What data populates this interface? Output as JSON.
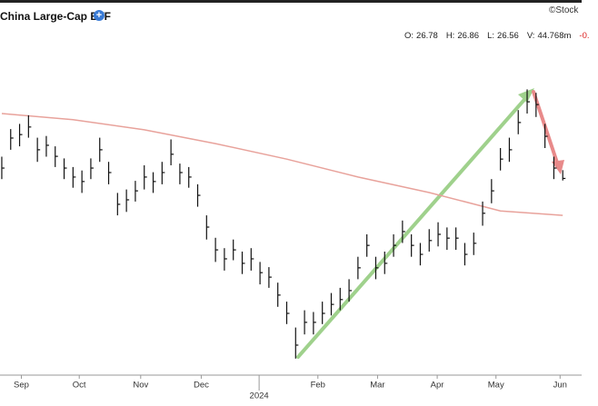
{
  "header": {
    "title": "China Large-Cap ETF",
    "watermark": "©Stock",
    "quote": [
      {
        "label": "O:",
        "value": 26.78
      },
      {
        "label": "H:",
        "value": 26.86
      },
      {
        "label": "L:",
        "value": 26.56
      },
      {
        "label": "V:",
        "value": "44.768m"
      }
    ],
    "change": "-0."
  },
  "chart_data": {
    "type": "ohlc",
    "color": "#111111",
    "high": [
      27.25,
      28.05,
      28.2,
      28.45,
      27.8,
      27.85,
      27.55,
      27.2,
      26.95,
      26.85,
      27.2,
      27.8,
      27.1,
      26.2,
      26.3,
      26.55,
      27.0,
      26.8,
      27.1,
      27.75,
      27.05,
      26.95,
      26.45,
      25.55,
      24.9,
      24.6,
      24.85,
      24.5,
      24.6,
      24.2,
      24.05,
      23.6,
      23.05,
      22.3,
      22.8,
      22.75,
      23.05,
      23.3,
      23.45,
      23.7,
      24.35,
      25.0,
      24.35,
      24.5,
      25.0,
      25.4,
      25.0,
      24.75,
      25.15,
      25.35,
      25.2,
      25.2,
      24.75,
      25.05,
      25.95,
      26.6,
      27.5,
      27.8,
      28.6,
      29.2,
      29.1,
      28.2,
      27.25,
      26.86
    ],
    "low": [
      26.6,
      27.45,
      27.55,
      27.8,
      27.1,
      27.25,
      26.95,
      26.6,
      26.35,
      26.2,
      26.6,
      27.1,
      26.45,
      25.55,
      25.65,
      25.95,
      26.3,
      26.2,
      26.45,
      27.0,
      26.45,
      26.35,
      25.8,
      24.85,
      24.2,
      23.95,
      24.25,
      23.85,
      23.95,
      23.55,
      23.45,
      22.9,
      22.4,
      21.4,
      22.1,
      22.1,
      22.4,
      22.65,
      22.8,
      23.05,
      23.7,
      24.35,
      23.7,
      23.85,
      24.35,
      24.75,
      24.35,
      24.1,
      24.5,
      24.65,
      24.55,
      24.55,
      24.1,
      24.4,
      25.25,
      25.9,
      26.85,
      27.1,
      27.9,
      28.5,
      28.4,
      27.5,
      26.6,
      26.56
    ],
    "close": [
      26.92,
      27.79,
      27.89,
      28.11,
      27.45,
      27.58,
      27.26,
      26.92,
      26.66,
      26.53,
      26.92,
      27.45,
      26.79,
      25.87,
      26.0,
      26.26,
      26.66,
      26.53,
      26.79,
      27.32,
      26.79,
      26.66,
      26.13,
      25.21,
      24.55,
      24.29,
      24.55,
      24.16,
      24.29,
      23.89,
      23.76,
      23.24,
      22.71,
      21.79,
      22.45,
      22.45,
      22.71,
      22.97,
      23.11,
      23.37,
      24.03,
      24.68,
      24.03,
      24.16,
      24.68,
      25.08,
      24.68,
      24.42,
      24.82,
      25.0,
      24.89,
      24.89,
      24.42,
      24.74,
      25.61,
      26.26,
      27.18,
      27.45,
      28.24,
      28.84,
      28.76,
      27.84,
      26.92,
      26.62
    ],
    "moving_average": {
      "color": "#e8a29b",
      "x": [
        0,
        8,
        16,
        24,
        32,
        40,
        48,
        56,
        63
      ],
      "values": [
        28.5,
        28.32,
        28.03,
        27.63,
        27.18,
        26.66,
        26.21,
        25.68,
        25.55
      ]
    },
    "xlim": [
      -0.2,
      64.1
    ],
    "ylim": [
      21,
      31
    ],
    "xticks": [
      {
        "value": 2.2,
        "label": "Sep"
      },
      {
        "value": 8.7,
        "label": "Oct"
      },
      {
        "value": 15.6,
        "label": "Nov"
      },
      {
        "value": 22.4,
        "label": "Dec"
      },
      {
        "value": 35.5,
        "label": "Feb"
      },
      {
        "value": 42.2,
        "label": "Mar"
      },
      {
        "value": 48.9,
        "label": "Apr"
      },
      {
        "value": 55.5,
        "label": "May"
      },
      {
        "value": 62.7,
        "label": "Jun"
      }
    ],
    "year_ticks": [
      {
        "value": 28.9,
        "label": "2024"
      }
    ]
  }
}
